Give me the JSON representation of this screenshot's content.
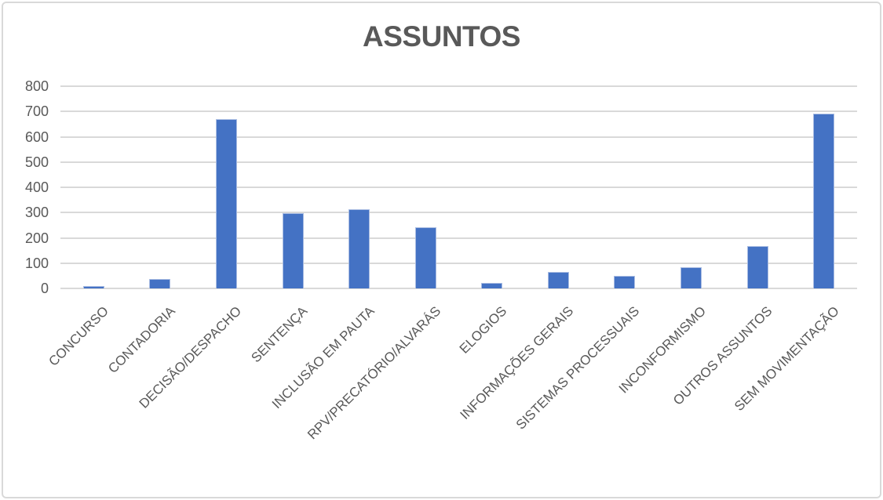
{
  "chart_data": {
    "type": "bar",
    "title": "ASSUNTOS",
    "categories": [
      "CONCURSO",
      "CONTADORIA",
      "DECISÃO/DESPACHO",
      "SENTENÇA",
      "INCLUSÃO EM PAUTA",
      "RPV/PRECATÓRIO/ALVARÁS",
      "ELOGIOS",
      "INFORMAÇÕES GERAIS",
      "SISTEMAS PROCESSUAIS",
      "INCONFORMISMO",
      "OUTROS ASSUNTOS",
      "SEM MOVIMENTAÇÃO"
    ],
    "values": [
      8,
      37,
      670,
      298,
      312,
      242,
      21,
      65,
      50,
      85,
      168,
      690
    ],
    "xlabel": "",
    "ylabel": "",
    "ylim": [
      0,
      800
    ],
    "ytick_step": 100,
    "ytick_labels": [
      "0",
      "100",
      "200",
      "300",
      "400",
      "500",
      "600",
      "700",
      "800"
    ],
    "grid": "horizontal",
    "legend_position": "none",
    "colors": {
      "bar_fill": "#4472C4",
      "bar_edge": "#A9BCE2",
      "gridline": "#D9D9D9",
      "frame_border": "#D9D9D9",
      "text": "#595959",
      "background": "#FFFFFF"
    }
  }
}
